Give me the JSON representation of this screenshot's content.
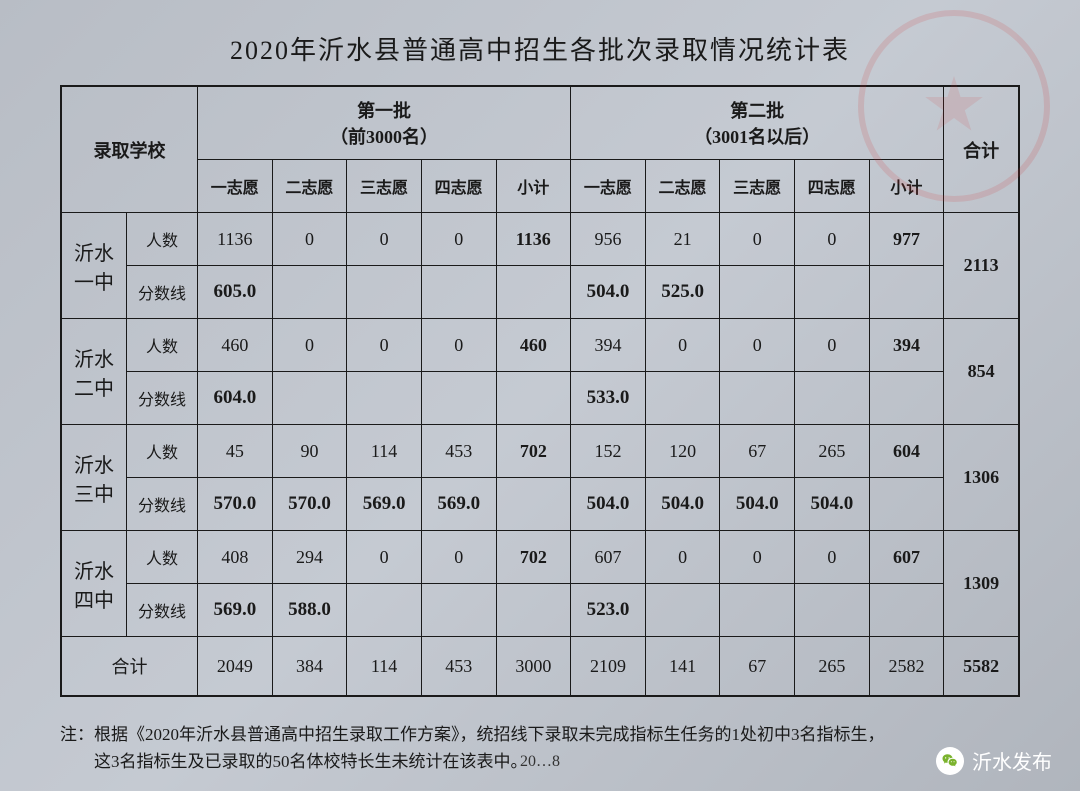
{
  "title": "2020年沂水县普通高中招生各批次录取情况统计表",
  "headers": {
    "school_col": "录取学校",
    "batch1": "第一批",
    "batch1_sub": "（前3000名）",
    "batch2": "第二批",
    "batch2_sub": "（3001名以后）",
    "total": "合计",
    "choices": [
      "一志愿",
      "二志愿",
      "三志愿",
      "四志愿"
    ],
    "subtotal": "小计",
    "count_label": "人数",
    "score_label": "分数线"
  },
  "schools": [
    {
      "name": "沂水一中",
      "count1": [
        "1136",
        "0",
        "0",
        "0",
        "1136"
      ],
      "score1": [
        "605.0",
        "",
        "",
        "",
        ""
      ],
      "count2": [
        "956",
        "21",
        "0",
        "0",
        "977"
      ],
      "score2": [
        "504.0",
        "525.0",
        "",
        "",
        ""
      ],
      "total": "2113"
    },
    {
      "name": "沂水二中",
      "count1": [
        "460",
        "0",
        "0",
        "0",
        "460"
      ],
      "score1": [
        "604.0",
        "",
        "",
        "",
        ""
      ],
      "count2": [
        "394",
        "0",
        "0",
        "0",
        "394"
      ],
      "score2": [
        "533.0",
        "",
        "",
        "",
        ""
      ],
      "total": "854"
    },
    {
      "name": "沂水三中",
      "count1": [
        "45",
        "90",
        "114",
        "453",
        "702"
      ],
      "score1": [
        "570.0",
        "570.0",
        "569.0",
        "569.0",
        ""
      ],
      "count2": [
        "152",
        "120",
        "67",
        "265",
        "604"
      ],
      "score2": [
        "504.0",
        "504.0",
        "504.0",
        "504.0",
        ""
      ],
      "total": "1306"
    },
    {
      "name": "沂水四中",
      "count1": [
        "408",
        "294",
        "0",
        "0",
        "702"
      ],
      "score1": [
        "569.0",
        "588.0",
        "",
        "",
        ""
      ],
      "count2": [
        "607",
        "0",
        "0",
        "0",
        "607"
      ],
      "score2": [
        "523.0",
        "",
        "",
        "",
        ""
      ],
      "total": "1309"
    }
  ],
  "totals": {
    "label": "合计",
    "batch1": [
      "2049",
      "384",
      "114",
      "453",
      "3000"
    ],
    "batch2": [
      "2109",
      "141",
      "67",
      "265",
      "2582"
    ],
    "grand": "5582"
  },
  "note_prefix": "注：",
  "note_line1": "根据《2020年沂水县普通高中招生录取工作方案》，统招线下录取未完成指标生任务的1处初中3名指标生，",
  "note_line2": "这3名指标生及已录取的50名体校特长生未统计在该表中。",
  "date_hint": "20…8",
  "watermark": "沂水发布",
  "colors": {
    "bg_from": "#b8bdc5",
    "bg_to": "#b0b5bd",
    "text": "#1a1a1a",
    "border": "#1a1a1a",
    "stamp": "rgba(210,50,50,0.25)",
    "wm_text": "#ffffff"
  }
}
